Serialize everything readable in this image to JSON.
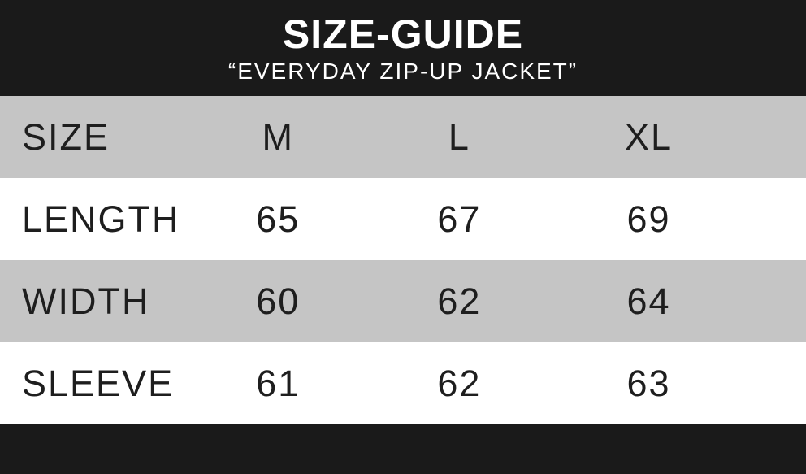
{
  "chart_data": {
    "type": "table",
    "title": "SIZE-GUIDE",
    "subtitle": "“EVERYDAY ZIP-UP JACKET”",
    "columns": [
      "SIZE",
      "M",
      "L",
      "XL"
    ],
    "rows": [
      [
        "LENGTH",
        65,
        67,
        69
      ],
      [
        "WIDTH",
        60,
        62,
        64
      ],
      [
        "SLEEVE",
        61,
        62,
        63
      ]
    ],
    "layout": {
      "header_band": "top",
      "footer_band": "bottom",
      "row_striping": "gray-white-alternating",
      "label_alignment": "left",
      "value_alignment": "center"
    }
  },
  "colors": {
    "band": "#1a1a1a",
    "row_alt": "#c5c5c5",
    "row": "#ffffff",
    "text": "#1e1e1e",
    "header_text": "#ffffff"
  }
}
